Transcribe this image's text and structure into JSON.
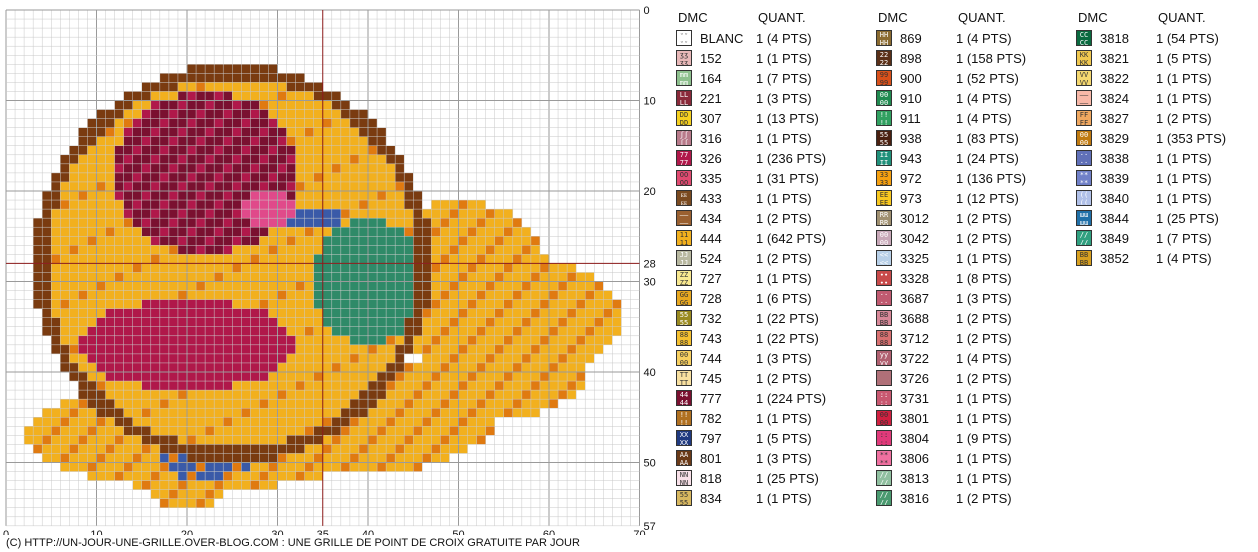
{
  "grid": {
    "x_axis_labels": [
      "0",
      "10",
      "20",
      "30",
      "35",
      "40",
      "50",
      "60",
      "70"
    ],
    "x_axis_values": [
      0,
      10,
      20,
      30,
      35,
      40,
      50,
      60,
      70
    ],
    "y_axis_labels": [
      "0",
      "10",
      "20",
      "28",
      "30",
      "40",
      "50",
      "57"
    ],
    "y_axis_values": [
      0,
      10,
      20,
      28,
      30,
      40,
      50,
      57
    ],
    "center_x": 35,
    "center_y": 28,
    "colors": {
      "yellow": "#f2b01e",
      "orange": "#e07a10",
      "brown": "#7a3b10",
      "crimson": "#b0184a",
      "burgundy": "#7a1030",
      "teal": "#2f8a68",
      "blue": "#3a5aa8",
      "pink": "#e04a8a",
      "gridline": "#c8c8c8",
      "majorline": "#9a9a9a",
      "centerline": "#8b1a1a"
    }
  },
  "legend": {
    "header_dmc": "DMC",
    "header_quant": "QUANT.",
    "columns": [
      [
        {
          "code": "BLANC",
          "qty": "1 (4 PTS)",
          "color": "#ffffff",
          "sym": "ᵕᵕ"
        },
        {
          "code": "152",
          "qty": "1 (1 PTS)",
          "color": "#e8b8b8",
          "sym": "ʒʒ"
        },
        {
          "code": "164",
          "qty": "1 (7 PTS)",
          "color": "#8ec08e",
          "sym": "mm"
        },
        {
          "code": "221",
          "qty": "1 (3 PTS)",
          "color": "#8a2a3a",
          "sym": "LL"
        },
        {
          "code": "307",
          "qty": "1 (13 PTS)",
          "color": "#f5d020",
          "sym": "DD"
        },
        {
          "code": "316",
          "qty": "1 (1 PTS)",
          "color": "#b87a8a",
          "sym": "ʃʃ"
        },
        {
          "code": "326",
          "qty": "1 (236 PTS)",
          "color": "#b0184a",
          "sym": "77"
        },
        {
          "code": "335",
          "qty": "1 (31 PTS)",
          "color": "#e04a70",
          "sym": "OO"
        },
        {
          "code": "433",
          "qty": "1 (1 PTS)",
          "color": "#7a4a20",
          "sym": "ᴇᴇ"
        },
        {
          "code": "434",
          "qty": "1 (2 PTS)",
          "color": "#9a6030",
          "sym": "––"
        },
        {
          "code": "444",
          "qty": "1 (642 PTS)",
          "color": "#f2b01e",
          "sym": "11"
        },
        {
          "code": "524",
          "qty": "1 (2 PTS)",
          "color": "#b8b8a0",
          "sym": "JJ"
        },
        {
          "code": "727",
          "qty": "1 (1 PTS)",
          "color": "#f8e890",
          "sym": "ZZ"
        },
        {
          "code": "728",
          "qty": "1 (6 PTS)",
          "color": "#e8a820",
          "sym": "GG"
        },
        {
          "code": "732",
          "qty": "1 (22 PTS)",
          "color": "#9a8a20",
          "sym": "55"
        },
        {
          "code": "743",
          "qty": "1 (22 PTS)",
          "color": "#f5c030",
          "sym": "88"
        },
        {
          "code": "744",
          "qty": "1 (3 PTS)",
          "color": "#f8d060",
          "sym": "00"
        },
        {
          "code": "745",
          "qty": "1 (2 PTS)",
          "color": "#f8e0a0",
          "sym": "TT"
        },
        {
          "code": "777",
          "qty": "1 (224 PTS)",
          "color": "#7a1030",
          "sym": "44"
        },
        {
          "code": "782",
          "qty": "1 (1 PTS)",
          "color": "#b07020",
          "sym": "!!"
        },
        {
          "code": "797",
          "qty": "1 (5 PTS)",
          "color": "#203a80",
          "sym": "XX"
        },
        {
          "code": "801",
          "qty": "1 (3 PTS)",
          "color": "#6a3a18",
          "sym": "AA"
        },
        {
          "code": "818",
          "qty": "1 (25 PTS)",
          "color": "#f8e0e8",
          "sym": "NN"
        },
        {
          "code": "834",
          "qty": "1 (1 PTS)",
          "color": "#d8b860",
          "sym": "55"
        }
      ],
      [
        {
          "code": "869",
          "qty": "1 (4 PTS)",
          "color": "#8a6a30",
          "sym": "HH"
        },
        {
          "code": "898",
          "qty": "1 (158 PTS)",
          "color": "#5a3018",
          "sym": "22"
        },
        {
          "code": "900",
          "qty": "1 (52 PTS)",
          "color": "#d8501a",
          "sym": "99"
        },
        {
          "code": "910",
          "qty": "1 (4 PTS)",
          "color": "#208a50",
          "sym": "00"
        },
        {
          "code": "911",
          "qty": "1 (4 PTS)",
          "color": "#30a060",
          "sym": "!!"
        },
        {
          "code": "938",
          "qty": "1 (83 PTS)",
          "color": "#4a2010",
          "sym": "55"
        },
        {
          "code": "943",
          "qty": "1 (24 PTS)",
          "color": "#20907a",
          "sym": "II"
        },
        {
          "code": "972",
          "qty": "1 (136 PTS)",
          "color": "#f5a010",
          "sym": "33"
        },
        {
          "code": "973",
          "qty": "1 (12 PTS)",
          "color": "#f8c820",
          "sym": "EE"
        },
        {
          "code": "3012",
          "qty": "1 (2 PTS)",
          "color": "#a09070",
          "sym": "RR"
        },
        {
          "code": "3042",
          "qty": "1 (2 PTS)",
          "color": "#c8a8b8",
          "sym": "00"
        },
        {
          "code": "3325",
          "qty": "1 (1 PTS)",
          "color": "#b8d0e8",
          "sym": "<<"
        },
        {
          "code": "3328",
          "qty": "1 (8 PTS)",
          "color": "#c84a4a",
          "sym": "∙∙"
        },
        {
          "code": "3687",
          "qty": "1 (3 PTS)",
          "color": "#c05a70",
          "sym": "··"
        },
        {
          "code": "3688",
          "qty": "1 (2 PTS)",
          "color": "#d88898",
          "sym": "BB"
        },
        {
          "code": "3712",
          "qty": "1 (2 PTS)",
          "color": "#d87070",
          "sym": "88"
        },
        {
          "code": "3722",
          "qty": "1 (4 PTS)",
          "color": "#b06070",
          "sym": "yy"
        },
        {
          "code": "3726",
          "qty": "1 (2 PTS)",
          "color": "#b07078",
          "sym": "  "
        },
        {
          "code": "3731",
          "qty": "1 (1 PTS)",
          "color": "#c85870",
          "sym": "::"
        },
        {
          "code": "3801",
          "qty": "1 (1 PTS)",
          "color": "#d02040",
          "sym": "00"
        },
        {
          "code": "3804",
          "qty": "1 (9 PTS)",
          "color": "#e03a7a",
          "sym": "::"
        },
        {
          "code": "3806",
          "qty": "1 (1 PTS)",
          "color": "#f070a0",
          "sym": "**"
        },
        {
          "code": "3813",
          "qty": "1 (1 PTS)",
          "color": "#90c0a0",
          "sym": "//"
        },
        {
          "code": "3816",
          "qty": "1 (2 PTS)",
          "color": "#4a9a70",
          "sym": "//"
        }
      ],
      [
        {
          "code": "3818",
          "qty": "1 (54 PTS)",
          "color": "#0a6a40",
          "sym": "CC"
        },
        {
          "code": "3821",
          "qty": "1 (5 PTS)",
          "color": "#f0c850",
          "sym": "KK"
        },
        {
          "code": "3822",
          "qty": "1 (1 PTS)",
          "color": "#f5d870",
          "sym": "VV"
        },
        {
          "code": "3824",
          "qty": "1 (1 PTS)",
          "color": "#f8b8a8",
          "sym": "––"
        },
        {
          "code": "3827",
          "qty": "1 (2 PTS)",
          "color": "#f0a860",
          "sym": "FF"
        },
        {
          "code": "3829",
          "qty": "1 (353 PTS)",
          "color": "#c07a10",
          "sym": "00"
        },
        {
          "code": "3838",
          "qty": "1 (1 PTS)",
          "color": "#6070b8",
          "sym": "··"
        },
        {
          "code": "3839",
          "qty": "1 (1 PTS)",
          "color": "#7080c8",
          "sym": "**"
        },
        {
          "code": "3840",
          "qty": "1 (1 PTS)",
          "color": "#b0c0e8",
          "sym": "(("
        },
        {
          "code": "3844",
          "qty": "1 (25 PTS)",
          "color": "#2070a8",
          "sym": "ɯɯ"
        },
        {
          "code": "3849",
          "qty": "1 (7 PTS)",
          "color": "#30a080",
          "sym": "//"
        },
        {
          "code": "3852",
          "qty": "1 (4 PTS)",
          "color": "#d8a020",
          "sym": "BB"
        }
      ]
    ]
  },
  "footer": "(C) HTTP://UN-JOUR-UNE-GRILLE.OVER-BLOG.COM : UNE GRILLE DE POINT DE CROIX GRATUITE PAR JOUR"
}
